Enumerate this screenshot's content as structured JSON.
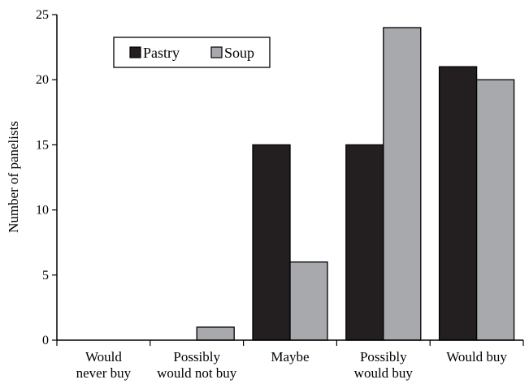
{
  "chart_data": {
    "type": "bar",
    "categories": [
      [
        "Would",
        "never buy"
      ],
      [
        "Possibly",
        "would not buy"
      ],
      [
        "Maybe"
      ],
      [
        "Possibly",
        "would buy"
      ],
      [
        "Would buy"
      ]
    ],
    "series": [
      {
        "name": "Pastry",
        "values": [
          0,
          0,
          15,
          15,
          21
        ],
        "color": "#231f20"
      },
      {
        "name": "Soup",
        "values": [
          0,
          1,
          6,
          24,
          20
        ],
        "color": "#a7a9ac"
      }
    ],
    "title": "",
    "xlabel": "",
    "ylabel": "Number of panelists",
    "ylim": [
      0,
      25
    ],
    "yticks": [
      "0",
      "5",
      "10",
      "15",
      "20",
      "25"
    ],
    "legend_position": "top-left",
    "grid": false
  }
}
